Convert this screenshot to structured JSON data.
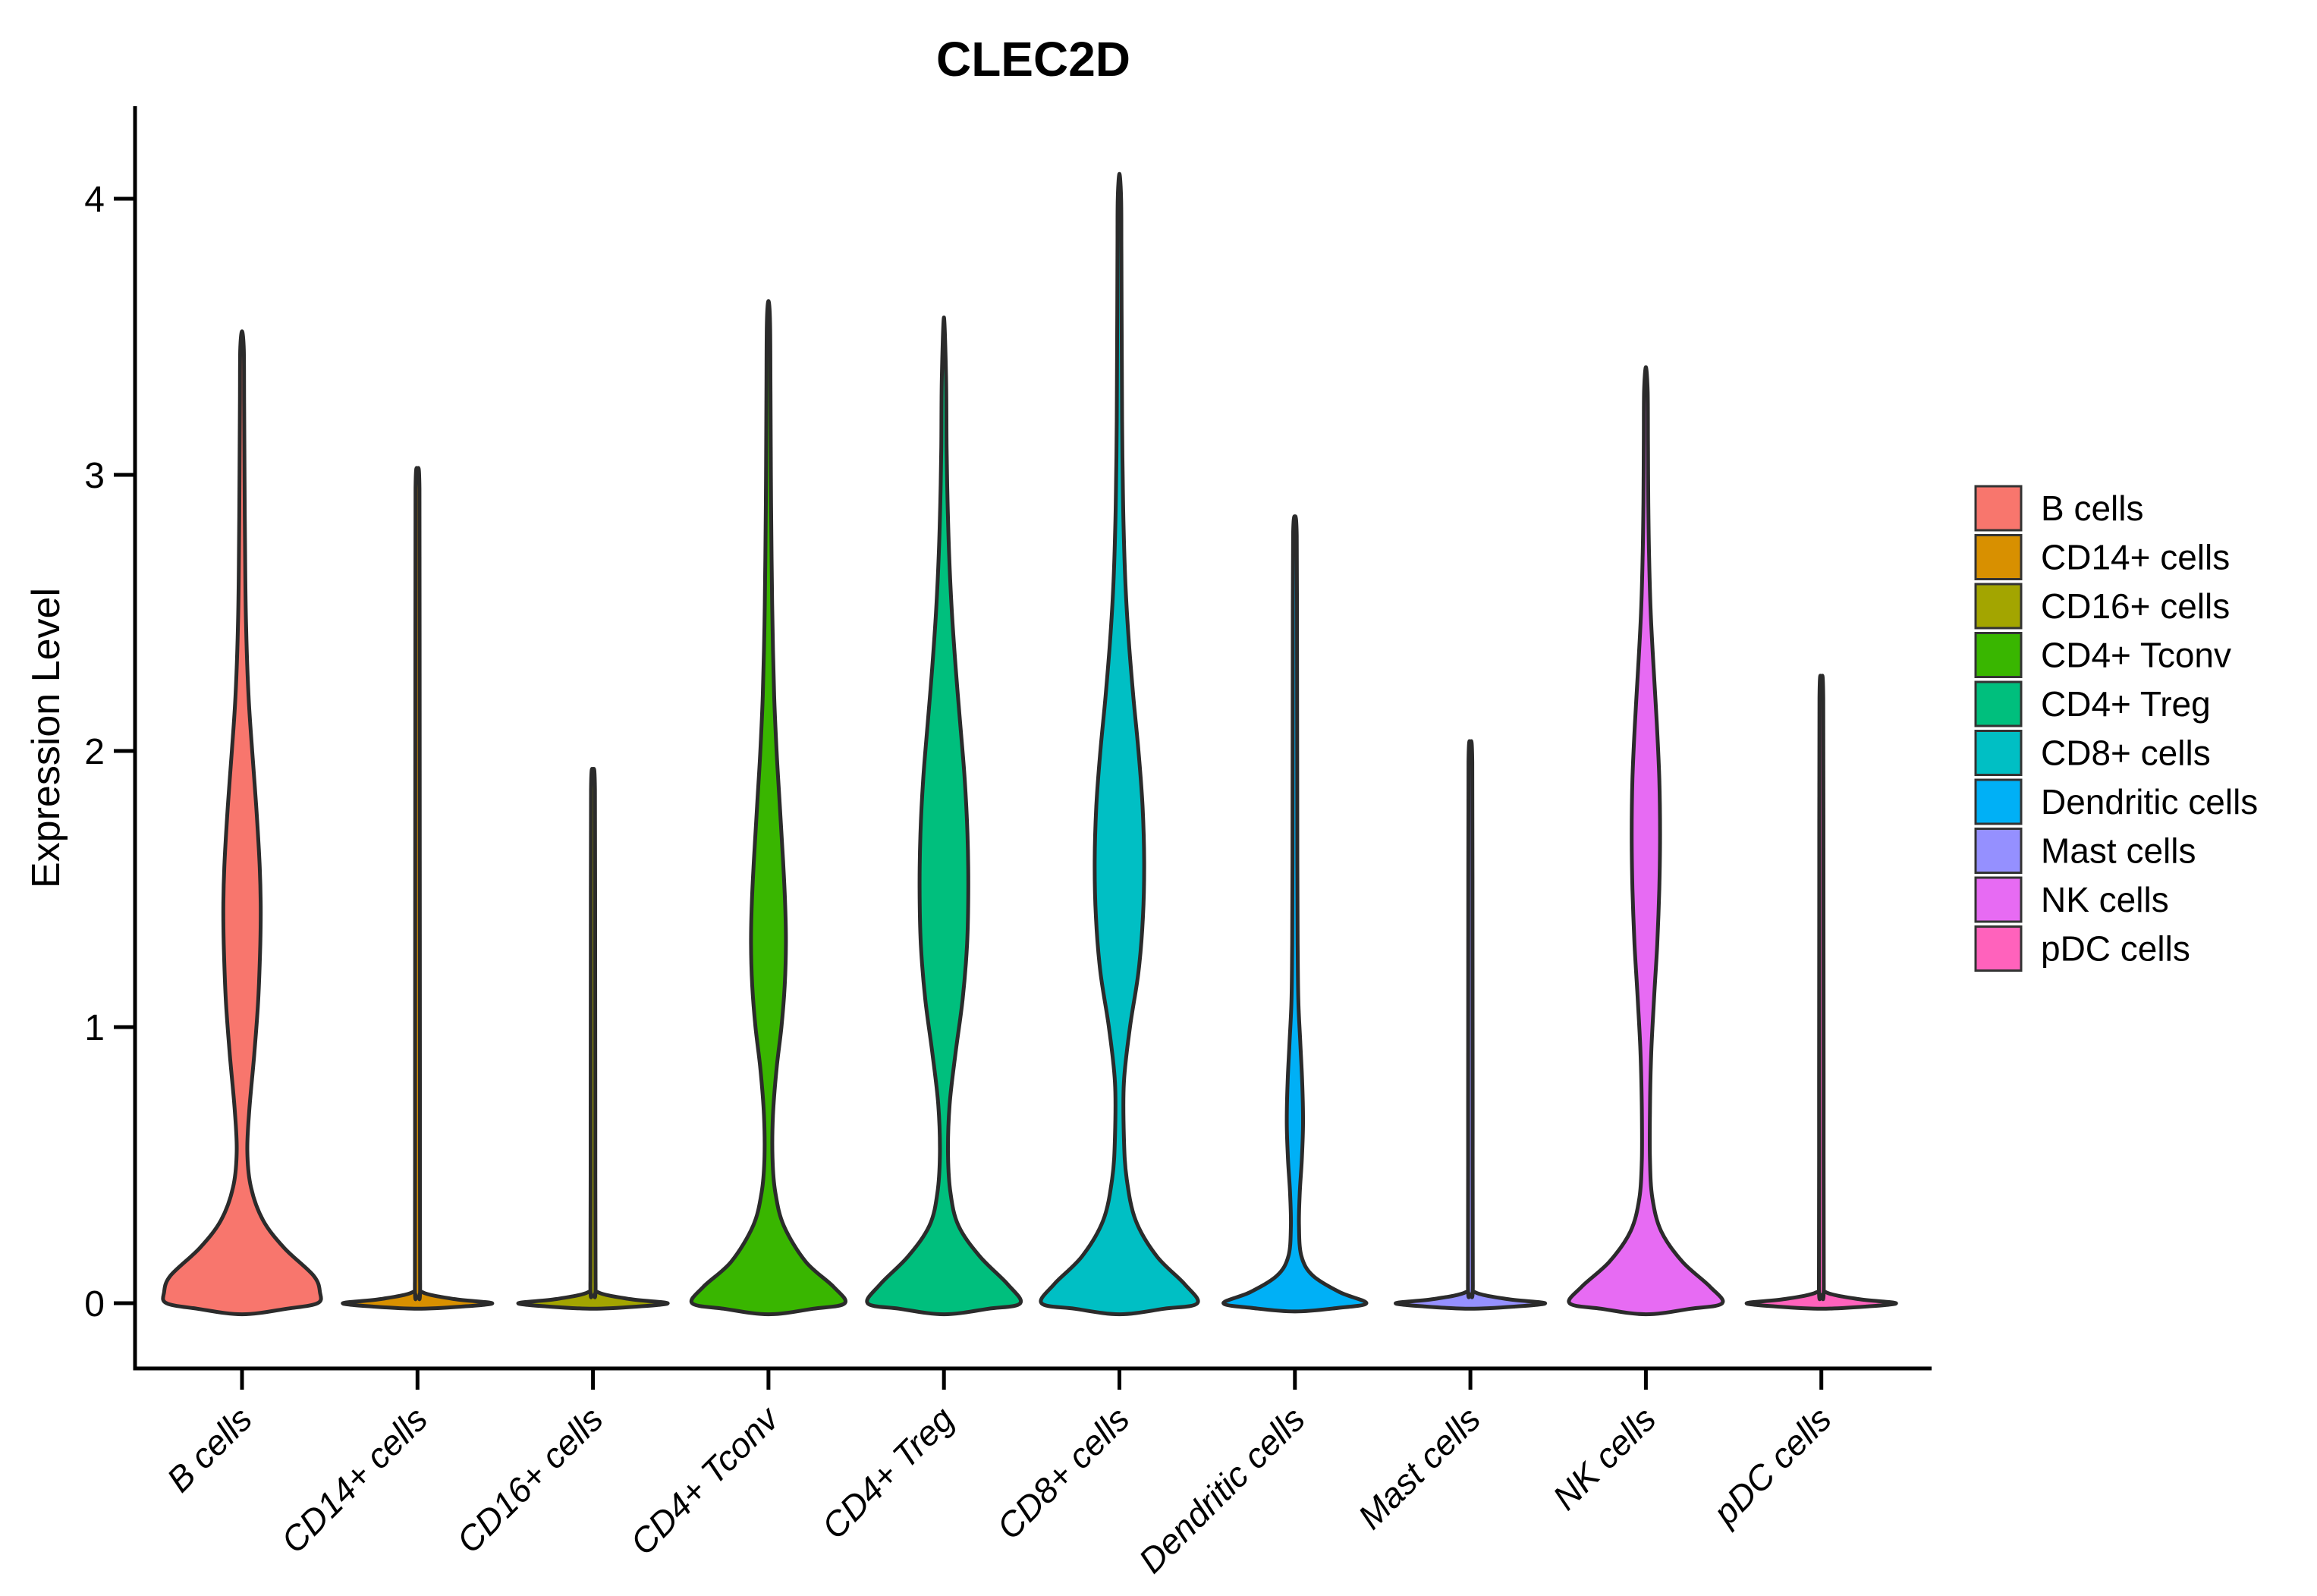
{
  "title": "CLEC2D",
  "y_axis": {
    "label": "Expression Level",
    "tick_labels": [
      "0",
      "1",
      "2",
      "3",
      "4"
    ]
  },
  "x_axis": {
    "tick_labels": [
      "B cells",
      "CD14+ cells",
      "CD16+ cells",
      "CD4+ Tconv",
      "CD4+ Treg",
      "CD8+ cells",
      "Dendritic cells",
      "Mast cells",
      "NK cells",
      "pDC cells"
    ]
  },
  "legend": {
    "entries": [
      {
        "label": "B cells",
        "color": "#F8766D"
      },
      {
        "label": "CD14+ cells",
        "color": "#D89000"
      },
      {
        "label": "CD16+ cells",
        "color": "#A3A500"
      },
      {
        "label": "CD4+ Tconv",
        "color": "#39B600"
      },
      {
        "label": "CD4+ Treg",
        "color": "#00BF7D"
      },
      {
        "label": "CD8+ cells",
        "color": "#00BFC4"
      },
      {
        "label": "Dendritic cells",
        "color": "#00B0F6"
      },
      {
        "label": "Mast cells",
        "color": "#9590FF"
      },
      {
        "label": "NK cells",
        "color": "#E76BF3"
      },
      {
        "label": "pDC cells",
        "color": "#FF62BC"
      }
    ]
  },
  "style": {
    "violin_outline_color": "#2b2b2b",
    "axis_color": "#000000",
    "legend_swatch_border_color": "#333333",
    "background_color": "#ffffff"
  },
  "chart_data": {
    "type": "violin",
    "title": "CLEC2D",
    "xlabel": "",
    "ylabel": "Expression Level",
    "ylim": [
      -0.24,
      4.33
    ],
    "yticks": [
      0,
      1,
      2,
      3,
      4
    ],
    "grid": false,
    "legend_position": "right",
    "categories": [
      "B cells",
      "CD14+ cells",
      "CD16+ cells",
      "CD4+ Tconv",
      "CD4+ Treg",
      "CD8+ cells",
      "Dendritic cells",
      "Mast cells",
      "NK cells",
      "pDC cells"
    ],
    "profile_format": "[expression_value, kernel_density_half_width_normalized_0_to_1]",
    "series": [
      {
        "name": "B cells",
        "color": "#F8766D",
        "max_expression": 3.52,
        "profile": [
          [
            -0.04,
            0
          ],
          [
            -0.02,
            0.55
          ],
          [
            0,
            0.93
          ],
          [
            0.04,
            0.96
          ],
          [
            0.1,
            0.88
          ],
          [
            0.2,
            0.52
          ],
          [
            0.3,
            0.26
          ],
          [
            0.42,
            0.11
          ],
          [
            0.55,
            0.065
          ],
          [
            0.7,
            0.09
          ],
          [
            0.9,
            0.15
          ],
          [
            1.1,
            0.2
          ],
          [
            1.3,
            0.225
          ],
          [
            1.45,
            0.23
          ],
          [
            1.6,
            0.215
          ],
          [
            1.8,
            0.175
          ],
          [
            2.0,
            0.125
          ],
          [
            2.2,
            0.08
          ],
          [
            2.45,
            0.05
          ],
          [
            2.7,
            0.038
          ],
          [
            3.0,
            0.031
          ],
          [
            3.25,
            0.026
          ],
          [
            3.45,
            0.022
          ],
          [
            3.52,
            0
          ]
        ]
      },
      {
        "name": "CD14+ cells",
        "color": "#D89000",
        "max_expression": 3.02,
        "profile": [
          [
            -0.02,
            0
          ],
          [
            -0.012,
            0.55
          ],
          [
            0,
            0.92
          ],
          [
            0.015,
            0.45
          ],
          [
            0.04,
            0.06
          ],
          [
            0.08,
            0.032
          ],
          [
            0.8,
            0.03
          ],
          [
            1.6,
            0.028
          ],
          [
            2.4,
            0.026
          ],
          [
            2.95,
            0.024
          ],
          [
            3.02,
            0
          ]
        ]
      },
      {
        "name": "CD16+ cells",
        "color": "#A3A500",
        "max_expression": 1.93,
        "profile": [
          [
            -0.02,
            0
          ],
          [
            -0.012,
            0.55
          ],
          [
            0,
            0.92
          ],
          [
            0.015,
            0.45
          ],
          [
            0.04,
            0.06
          ],
          [
            0.08,
            0.032
          ],
          [
            0.7,
            0.029
          ],
          [
            1.3,
            0.027
          ],
          [
            1.86,
            0.024
          ],
          [
            1.93,
            0
          ]
        ]
      },
      {
        "name": "CD4+ Tconv",
        "color": "#39B600",
        "max_expression": 3.63,
        "profile": [
          [
            -0.04,
            0
          ],
          [
            -0.02,
            0.55
          ],
          [
            0,
            0.94
          ],
          [
            0.06,
            0.8
          ],
          [
            0.15,
            0.46
          ],
          [
            0.28,
            0.19
          ],
          [
            0.4,
            0.085
          ],
          [
            0.52,
            0.05
          ],
          [
            0.68,
            0.055
          ],
          [
            0.85,
            0.1
          ],
          [
            1.0,
            0.16
          ],
          [
            1.15,
            0.2
          ],
          [
            1.3,
            0.215
          ],
          [
            1.45,
            0.205
          ],
          [
            1.6,
            0.18
          ],
          [
            1.8,
            0.14
          ],
          [
            2.0,
            0.1
          ],
          [
            2.2,
            0.07
          ],
          [
            2.45,
            0.05
          ],
          [
            2.7,
            0.038
          ],
          [
            3.0,
            0.03
          ],
          [
            3.3,
            0.025
          ],
          [
            3.55,
            0.02
          ],
          [
            3.63,
            0
          ]
        ]
      },
      {
        "name": "CD4+ Treg",
        "color": "#00BF7D",
        "max_expression": 3.57,
        "profile": [
          [
            -0.04,
            0
          ],
          [
            -0.02,
            0.55
          ],
          [
            0,
            0.94
          ],
          [
            0.07,
            0.78
          ],
          [
            0.17,
            0.44
          ],
          [
            0.28,
            0.18
          ],
          [
            0.4,
            0.08
          ],
          [
            0.55,
            0.05
          ],
          [
            0.72,
            0.07
          ],
          [
            0.9,
            0.14
          ],
          [
            1.1,
            0.23
          ],
          [
            1.3,
            0.285
          ],
          [
            1.5,
            0.3
          ],
          [
            1.7,
            0.29
          ],
          [
            1.9,
            0.255
          ],
          [
            2.1,
            0.2
          ],
          [
            2.3,
            0.145
          ],
          [
            2.5,
            0.098
          ],
          [
            2.7,
            0.065
          ],
          [
            2.9,
            0.045
          ],
          [
            3.1,
            0.033
          ],
          [
            3.35,
            0.026
          ],
          [
            3.57,
            0
          ]
        ]
      },
      {
        "name": "CD8+ cells",
        "color": "#00BFC4",
        "max_expression": 4.09,
        "profile": [
          [
            -0.04,
            0
          ],
          [
            -0.02,
            0.55
          ],
          [
            0,
            0.96
          ],
          [
            0.07,
            0.8
          ],
          [
            0.17,
            0.46
          ],
          [
            0.3,
            0.2
          ],
          [
            0.45,
            0.09
          ],
          [
            0.6,
            0.055
          ],
          [
            0.8,
            0.055
          ],
          [
            1.0,
            0.13
          ],
          [
            1.2,
            0.235
          ],
          [
            1.4,
            0.29
          ],
          [
            1.6,
            0.305
          ],
          [
            1.8,
            0.285
          ],
          [
            2.0,
            0.235
          ],
          [
            2.2,
            0.17
          ],
          [
            2.4,
            0.115
          ],
          [
            2.6,
            0.075
          ],
          [
            2.8,
            0.052
          ],
          [
            3.0,
            0.04
          ],
          [
            3.2,
            0.033
          ],
          [
            3.5,
            0.028
          ],
          [
            3.8,
            0.024
          ],
          [
            4.0,
            0.021
          ],
          [
            4.09,
            0
          ]
        ]
      },
      {
        "name": "Dendritic cells",
        "color": "#00B0F6",
        "max_expression": 2.85,
        "profile": [
          [
            -0.03,
            0
          ],
          [
            -0.018,
            0.5
          ],
          [
            0,
            0.88
          ],
          [
            0.04,
            0.55
          ],
          [
            0.1,
            0.22
          ],
          [
            0.17,
            0.08
          ],
          [
            0.28,
            0.05
          ],
          [
            0.4,
            0.06
          ],
          [
            0.52,
            0.085
          ],
          [
            0.65,
            0.1
          ],
          [
            0.8,
            0.09
          ],
          [
            0.95,
            0.065
          ],
          [
            1.1,
            0.042
          ],
          [
            1.3,
            0.034
          ],
          [
            1.6,
            0.03
          ],
          [
            2.0,
            0.028
          ],
          [
            2.4,
            0.026
          ],
          [
            2.78,
            0.022
          ],
          [
            2.85,
            0
          ]
        ]
      },
      {
        "name": "Mast cells",
        "color": "#9590FF",
        "max_expression": 2.03,
        "profile": [
          [
            -0.02,
            0
          ],
          [
            -0.012,
            0.55
          ],
          [
            0,
            0.92
          ],
          [
            0.015,
            0.45
          ],
          [
            0.04,
            0.055
          ],
          [
            0.08,
            0.03
          ],
          [
            0.7,
            0.028
          ],
          [
            1.4,
            0.026
          ],
          [
            1.96,
            0.023
          ],
          [
            2.03,
            0
          ]
        ]
      },
      {
        "name": "NK cells",
        "color": "#E76BF3",
        "max_expression": 3.39,
        "profile": [
          [
            -0.04,
            0
          ],
          [
            -0.02,
            0.55
          ],
          [
            0,
            0.94
          ],
          [
            0.06,
            0.79
          ],
          [
            0.15,
            0.45
          ],
          [
            0.26,
            0.19
          ],
          [
            0.38,
            0.08
          ],
          [
            0.52,
            0.05
          ],
          [
            0.7,
            0.05
          ],
          [
            0.9,
            0.065
          ],
          [
            1.1,
            0.1
          ],
          [
            1.3,
            0.14
          ],
          [
            1.5,
            0.165
          ],
          [
            1.7,
            0.175
          ],
          [
            1.9,
            0.165
          ],
          [
            2.1,
            0.135
          ],
          [
            2.3,
            0.095
          ],
          [
            2.5,
            0.06
          ],
          [
            2.7,
            0.04
          ],
          [
            2.9,
            0.03
          ],
          [
            3.1,
            0.026
          ],
          [
            3.3,
            0.022
          ],
          [
            3.39,
            0
          ]
        ]
      },
      {
        "name": "pDC cells",
        "color": "#FF62BC",
        "max_expression": 2.26,
        "profile": [
          [
            -0.02,
            0
          ],
          [
            -0.012,
            0.55
          ],
          [
            0,
            0.92
          ],
          [
            0.015,
            0.45
          ],
          [
            0.04,
            0.055
          ],
          [
            0.08,
            0.03
          ],
          [
            0.8,
            0.028
          ],
          [
            1.5,
            0.026
          ],
          [
            2.19,
            0.023
          ],
          [
            2.26,
            0
          ]
        ]
      }
    ]
  }
}
